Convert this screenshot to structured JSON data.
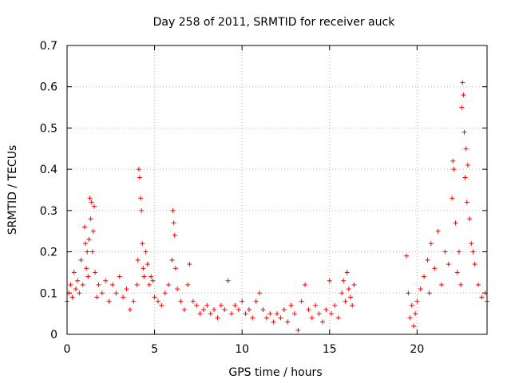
{
  "chart_data": {
    "type": "scatter",
    "title": "Day 258 of 2011, SRMTID for receiver auck",
    "xlabel": "GPS time / hours",
    "ylabel": "SRMTID / TECUs",
    "xlim": [
      0,
      24
    ],
    "ylim": [
      0,
      0.7
    ],
    "xticks": [
      0,
      5,
      10,
      15,
      20
    ],
    "yticks": [
      0,
      0.1,
      0.2,
      0.3,
      0.4,
      0.5,
      0.6,
      0.7
    ],
    "xtick_labels": [
      "0",
      "5",
      "10",
      "15",
      "20"
    ],
    "ytick_labels": [
      "0",
      "0.1",
      "0.2",
      "0.3",
      "0.4",
      "0.5",
      "0.6",
      "0.7"
    ],
    "grid": true,
    "marker": "+",
    "color": "#ff0000",
    "gap_hours": [
      16.5,
      19.3
    ],
    "series": [
      {
        "name": "SRMTID",
        "points": [
          [
            0.0,
            0.08
          ],
          [
            0.1,
            0.1
          ],
          [
            0.2,
            0.12
          ],
          [
            0.3,
            0.09
          ],
          [
            0.4,
            0.15
          ],
          [
            0.5,
            0.11
          ],
          [
            0.6,
            0.13
          ],
          [
            0.7,
            0.1
          ],
          [
            0.8,
            0.18
          ],
          [
            0.9,
            0.12
          ],
          [
            1.0,
            0.26
          ],
          [
            1.05,
            0.22
          ],
          [
            1.1,
            0.16
          ],
          [
            1.15,
            0.2
          ],
          [
            1.2,
            0.14
          ],
          [
            1.25,
            0.23
          ],
          [
            1.3,
            0.33
          ],
          [
            1.35,
            0.28
          ],
          [
            1.4,
            0.32
          ],
          [
            1.45,
            0.2
          ],
          [
            1.5,
            0.25
          ],
          [
            1.55,
            0.31
          ],
          [
            1.6,
            0.15
          ],
          [
            1.7,
            0.09
          ],
          [
            1.8,
            0.12
          ],
          [
            2.0,
            0.1
          ],
          [
            2.2,
            0.13
          ],
          [
            2.4,
            0.08
          ],
          [
            2.6,
            0.12
          ],
          [
            2.8,
            0.1
          ],
          [
            3.0,
            0.14
          ],
          [
            3.2,
            0.09
          ],
          [
            3.4,
            0.11
          ],
          [
            3.6,
            0.06
          ],
          [
            3.8,
            0.08
          ],
          [
            4.0,
            0.12
          ],
          [
            4.05,
            0.18
          ],
          [
            4.1,
            0.4
          ],
          [
            4.15,
            0.38
          ],
          [
            4.2,
            0.33
          ],
          [
            4.25,
            0.3
          ],
          [
            4.3,
            0.22
          ],
          [
            4.35,
            0.16
          ],
          [
            4.4,
            0.14
          ],
          [
            4.5,
            0.2
          ],
          [
            4.6,
            0.17
          ],
          [
            4.7,
            0.12
          ],
          [
            4.8,
            0.14
          ],
          [
            4.9,
            0.13
          ],
          [
            5.0,
            0.09
          ],
          [
            5.2,
            0.08
          ],
          [
            5.4,
            0.07
          ],
          [
            5.6,
            0.1
          ],
          [
            5.8,
            0.12
          ],
          [
            6.0,
            0.18
          ],
          [
            6.05,
            0.3
          ],
          [
            6.1,
            0.27
          ],
          [
            6.15,
            0.24
          ],
          [
            6.2,
            0.16
          ],
          [
            6.3,
            0.11
          ],
          [
            6.5,
            0.08
          ],
          [
            6.7,
            0.06
          ],
          [
            6.9,
            0.12
          ],
          [
            7.0,
            0.17
          ],
          [
            7.2,
            0.08
          ],
          [
            7.4,
            0.07
          ],
          [
            7.6,
            0.05
          ],
          [
            7.8,
            0.06
          ],
          [
            8.0,
            0.07
          ],
          [
            8.2,
            0.05
          ],
          [
            8.4,
            0.06
          ],
          [
            8.6,
            0.04
          ],
          [
            8.8,
            0.07
          ],
          [
            9.0,
            0.06
          ],
          [
            9.2,
            0.13
          ],
          [
            9.4,
            0.05
          ],
          [
            9.6,
            0.07
          ],
          [
            9.8,
            0.06
          ],
          [
            10.0,
            0.08
          ],
          [
            10.2,
            0.05
          ],
          [
            10.4,
            0.06
          ],
          [
            10.6,
            0.04
          ],
          [
            10.8,
            0.08
          ],
          [
            11.0,
            0.1
          ],
          [
            11.2,
            0.06
          ],
          [
            11.4,
            0.04
          ],
          [
            11.6,
            0.05
          ],
          [
            11.8,
            0.03
          ],
          [
            12.0,
            0.05
          ],
          [
            12.2,
            0.04
          ],
          [
            12.4,
            0.06
          ],
          [
            12.6,
            0.03
          ],
          [
            12.8,
            0.07
          ],
          [
            13.0,
            0.05
          ],
          [
            13.2,
            0.01
          ],
          [
            13.4,
            0.08
          ],
          [
            13.6,
            0.12
          ],
          [
            13.8,
            0.06
          ],
          [
            14.0,
            0.04
          ],
          [
            14.2,
            0.07
          ],
          [
            14.4,
            0.05
          ],
          [
            14.6,
            0.03
          ],
          [
            14.8,
            0.06
          ],
          [
            15.0,
            0.13
          ],
          [
            15.1,
            0.05
          ],
          [
            15.3,
            0.07
          ],
          [
            15.5,
            0.04
          ],
          [
            15.7,
            0.1
          ],
          [
            15.8,
            0.13
          ],
          [
            15.9,
            0.08
          ],
          [
            16.0,
            0.15
          ],
          [
            16.1,
            0.11
          ],
          [
            16.2,
            0.09
          ],
          [
            16.3,
            0.07
          ],
          [
            16.4,
            0.12
          ],
          [
            19.4,
            0.19
          ],
          [
            19.5,
            0.1
          ],
          [
            19.6,
            0.04
          ],
          [
            19.7,
            0.07
          ],
          [
            19.8,
            0.02
          ],
          [
            19.9,
            0.05
          ],
          [
            20.0,
            0.08
          ],
          [
            20.2,
            0.11
          ],
          [
            20.4,
            0.14
          ],
          [
            20.6,
            0.18
          ],
          [
            20.7,
            0.1
          ],
          [
            20.8,
            0.22
          ],
          [
            21.0,
            0.16
          ],
          [
            21.2,
            0.25
          ],
          [
            21.4,
            0.12
          ],
          [
            21.6,
            0.2
          ],
          [
            21.8,
            0.17
          ],
          [
            22.0,
            0.33
          ],
          [
            22.05,
            0.42
          ],
          [
            22.1,
            0.4
          ],
          [
            22.2,
            0.27
          ],
          [
            22.3,
            0.15
          ],
          [
            22.4,
            0.2
          ],
          [
            22.5,
            0.12
          ],
          [
            22.55,
            0.55
          ],
          [
            22.6,
            0.61
          ],
          [
            22.65,
            0.58
          ],
          [
            22.7,
            0.49
          ],
          [
            22.75,
            0.38
          ],
          [
            22.8,
            0.45
          ],
          [
            22.85,
            0.32
          ],
          [
            22.9,
            0.41
          ],
          [
            23.0,
            0.28
          ],
          [
            23.1,
            0.22
          ],
          [
            23.2,
            0.2
          ],
          [
            23.3,
            0.17
          ],
          [
            23.5,
            0.12
          ],
          [
            23.7,
            0.09
          ],
          [
            23.9,
            0.1
          ],
          [
            24.0,
            0.08
          ]
        ]
      }
    ]
  }
}
